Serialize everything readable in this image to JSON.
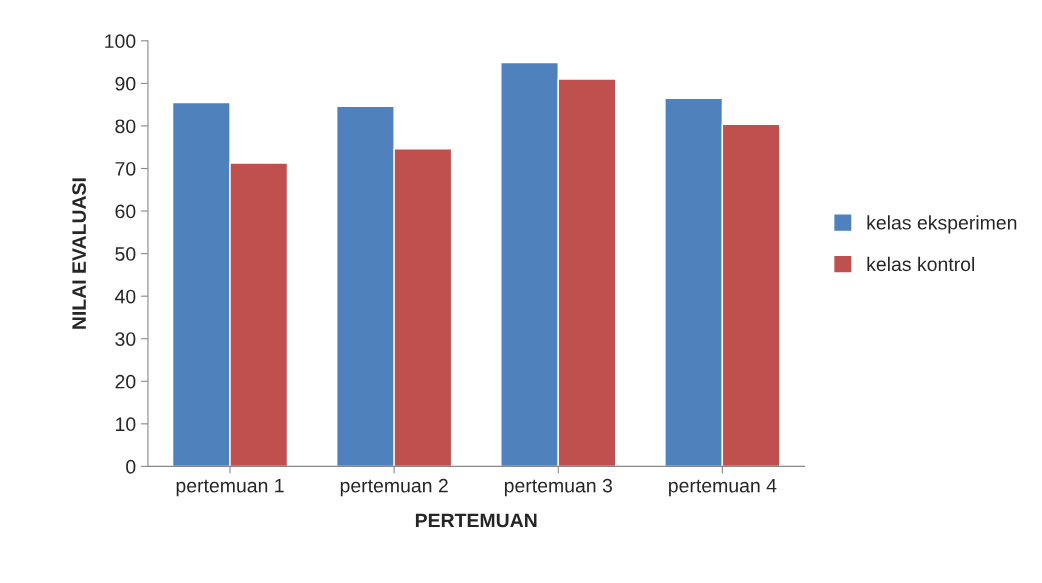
{
  "chart_data": {
    "type": "bar",
    "xlabel": "PERTEMUAN",
    "ylabel": "NILAI EVALUASI",
    "categories": [
      "pertemuan 1",
      "pertemuan 2",
      "pertemuan 3",
      "pertemuan 4"
    ],
    "series": [
      {
        "name": "kelas eksperimen",
        "color": "#4f81bd",
        "values": [
          85.5,
          84.6,
          94.9,
          86.5
        ]
      },
      {
        "name": "kelas kontrol",
        "color": "#c0504d",
        "values": [
          71.3,
          74.6,
          91.0,
          80.4
        ]
      }
    ],
    "ylim": [
      0,
      100
    ],
    "yticks": [
      0,
      10,
      20,
      30,
      40,
      50,
      60,
      70,
      80,
      90,
      100
    ],
    "grid": false,
    "legend": "right"
  }
}
